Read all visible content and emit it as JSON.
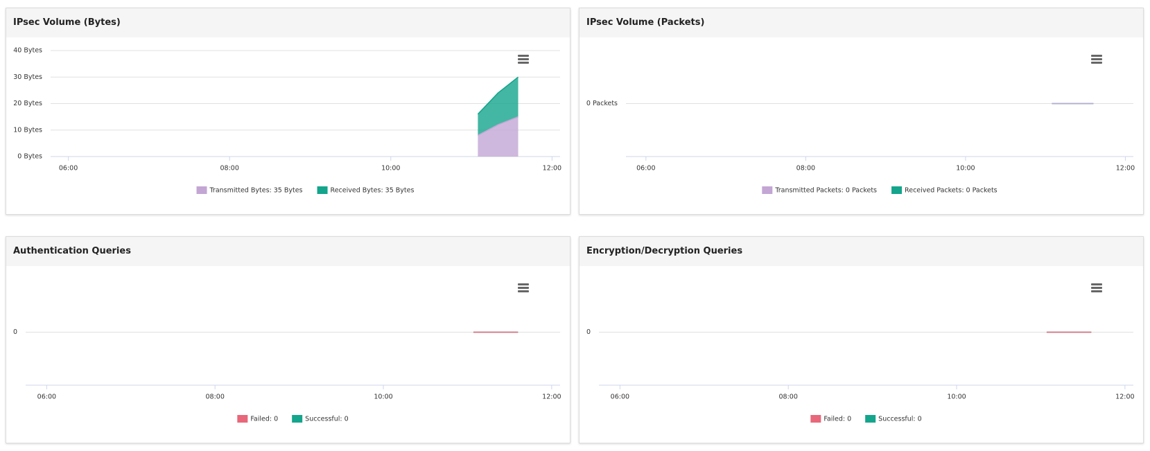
{
  "chart_data": [
    {
      "type": "area",
      "stacked": true,
      "title": "IPsec Volume (Bytes)",
      "x": [
        11.08,
        11.33,
        11.58
      ],
      "xlim": [
        5.78,
        12.1
      ],
      "xticks": [
        {
          "value": 6,
          "label": "06:00"
        },
        {
          "value": 8,
          "label": "08:00"
        },
        {
          "value": 10,
          "label": "10:00"
        },
        {
          "value": 12,
          "label": "12:00"
        }
      ],
      "ylim": [
        0,
        40
      ],
      "yticks": [
        {
          "value": 0,
          "label": "0 Bytes"
        },
        {
          "value": 10,
          "label": "10 Bytes"
        },
        {
          "value": 20,
          "label": "20 Bytes"
        },
        {
          "value": 30,
          "label": "30 Bytes"
        },
        {
          "value": 40,
          "label": "40 Bytes"
        }
      ],
      "grid": true,
      "series": [
        {
          "name": "Transmitted Bytes: 35 Bytes",
          "color": "#c3a6d4",
          "values": [
            8,
            12,
            15
          ]
        },
        {
          "name": "Received Bytes: 35 Bytes",
          "color": "#14a58c",
          "values": [
            8,
            12,
            15
          ]
        }
      ]
    },
    {
      "type": "area",
      "stacked": true,
      "title": "IPsec Volume (Packets)",
      "x": [
        11.08,
        11.33,
        11.6
      ],
      "xlim": [
        5.75,
        12.1
      ],
      "xticks": [
        {
          "value": 6,
          "label": "06:00"
        },
        {
          "value": 8,
          "label": "08:00"
        },
        {
          "value": 10,
          "label": "10:00"
        },
        {
          "value": 12,
          "label": "12:00"
        }
      ],
      "ylim": [
        -1,
        1
      ],
      "yticks": [
        {
          "value": 0,
          "label": "0 Packets"
        }
      ],
      "grid": true,
      "series": [
        {
          "name": "Transmitted Packets: 0 Packets",
          "color": "#c3a6d4",
          "values": [
            0,
            0,
            0
          ]
        },
        {
          "name": "Received Packets: 0 Packets",
          "color": "#14a58c",
          "values": [
            0,
            0,
            0
          ]
        }
      ]
    },
    {
      "type": "area",
      "stacked": true,
      "title": "Authentication Queries",
      "x": [
        11.07,
        11.33,
        11.6
      ],
      "xlim": [
        5.75,
        12.1
      ],
      "xticks": [
        {
          "value": 6,
          "label": "06:00"
        },
        {
          "value": 8,
          "label": "08:00"
        },
        {
          "value": 10,
          "label": "10:00"
        },
        {
          "value": 12,
          "label": "12:00"
        }
      ],
      "ylim": [
        -1,
        1
      ],
      "yticks": [
        0
      ],
      "grid": true,
      "series": [
        {
          "name": "Failed: 0",
          "color": "#e8677a",
          "values": [
            0,
            0,
            0
          ]
        },
        {
          "name": "Successful: 0",
          "color": "#14a58c",
          "values": [
            0,
            0,
            0
          ]
        }
      ]
    },
    {
      "type": "area",
      "stacked": true,
      "title": "Encryption/Decryption Queries",
      "x": [
        11.07,
        11.33,
        11.6
      ],
      "xlim": [
        5.75,
        12.1
      ],
      "xticks": [
        {
          "value": 6,
          "label": "06:00"
        },
        {
          "value": 8,
          "label": "08:00"
        },
        {
          "value": 10,
          "label": "10:00"
        },
        {
          "value": 12,
          "label": "12:00"
        }
      ],
      "ylim": [
        -1,
        1
      ],
      "yticks": [
        0
      ],
      "grid": true,
      "series": [
        {
          "name": "Failed: 0",
          "color": "#e8677a",
          "values": [
            0,
            0,
            0
          ]
        },
        {
          "name": "Successful: 0",
          "color": "#14a58c",
          "values": [
            0,
            0,
            0
          ]
        }
      ]
    }
  ]
}
